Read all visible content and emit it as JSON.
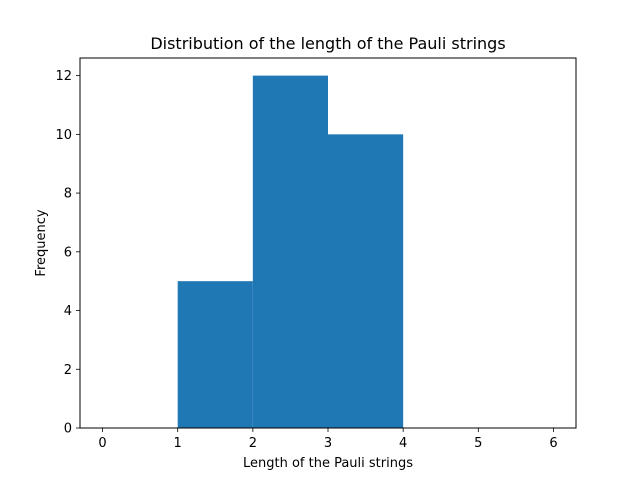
{
  "chart_data": {
    "type": "bar",
    "title": "Distribution of the length of the Pauli strings",
    "xlabel": "Length of the Pauli strings",
    "ylabel": "Frequency",
    "xlim": [
      -0.3,
      6.3
    ],
    "ylim": [
      0,
      12.6
    ],
    "xticks": [
      0,
      1,
      2,
      3,
      4,
      5,
      6
    ],
    "yticks": [
      0,
      2,
      4,
      6,
      8,
      10,
      12
    ],
    "bins": [
      {
        "x0": 1,
        "x1": 2,
        "value": 5
      },
      {
        "x0": 2,
        "x1": 3,
        "value": 12
      },
      {
        "x0": 3,
        "x1": 4,
        "value": 10
      }
    ],
    "bar_color": "#1f77b4",
    "grid": false
  }
}
